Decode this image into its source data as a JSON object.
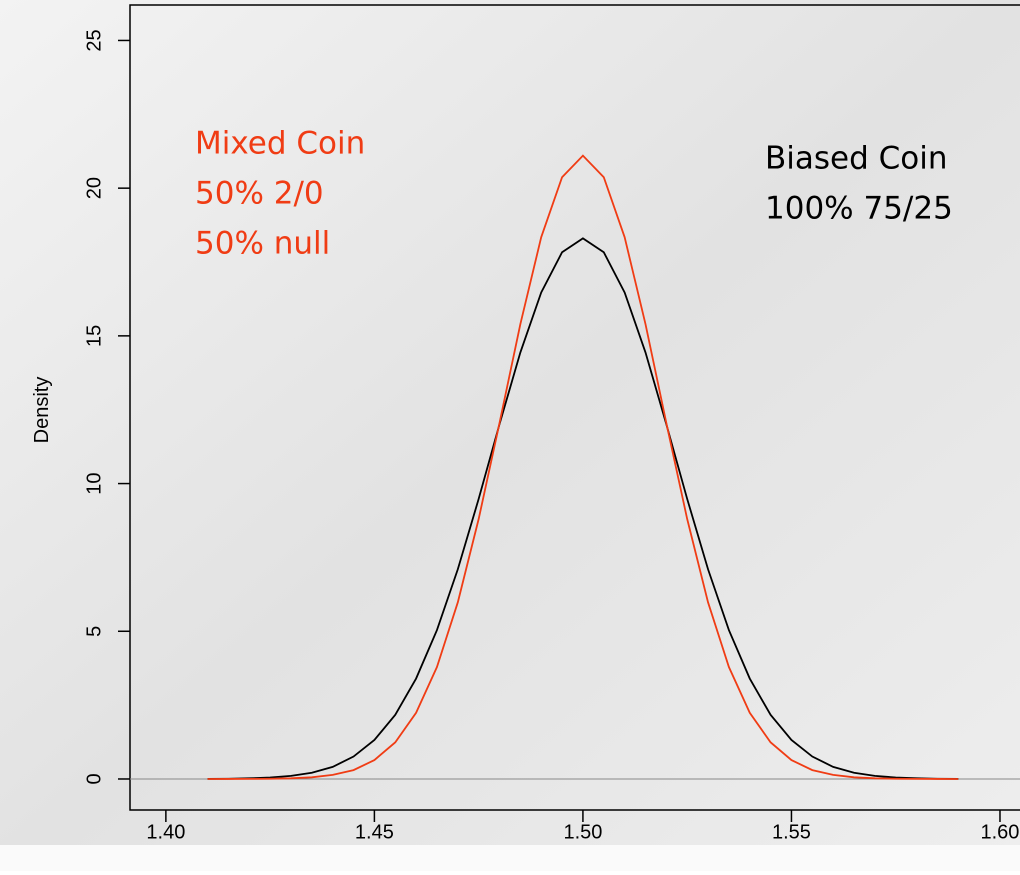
{
  "chart_data": {
    "type": "line",
    "ylabel": "Density",
    "x": [
      1.41,
      1.415,
      1.42,
      1.425,
      1.43,
      1.435,
      1.44,
      1.445,
      1.45,
      1.455,
      1.46,
      1.465,
      1.47,
      1.475,
      1.48,
      1.485,
      1.49,
      1.495,
      1.5,
      1.505,
      1.51,
      1.515,
      1.52,
      1.525,
      1.53,
      1.535,
      1.54,
      1.545,
      1.55,
      1.555,
      1.56,
      1.565,
      1.57,
      1.575,
      1.58,
      1.585,
      1.59
    ],
    "series": [
      {
        "color": "#000000",
        "values": [
          0.004,
          0.009,
          0.022,
          0.049,
          0.105,
          0.21,
          0.41,
          0.76,
          1.32,
          2.17,
          3.4,
          5.04,
          7.1,
          9.48,
          12.01,
          14.44,
          16.47,
          17.83,
          18.3,
          17.83,
          16.47,
          14.44,
          12.01,
          9.48,
          7.1,
          5.04,
          3.4,
          2.17,
          1.32,
          0.76,
          0.41,
          0.21,
          0.105,
          0.049,
          0.022,
          0.009,
          0.004
        ]
      },
      {
        "color": "#f03c14",
        "values": [
          0.0003,
          0.001,
          0.003,
          0.008,
          0.022,
          0.057,
          0.14,
          0.3,
          0.64,
          1.24,
          2.24,
          3.79,
          5.98,
          8.8,
          12.05,
          15.4,
          18.34,
          20.37,
          21.1,
          20.37,
          18.34,
          15.4,
          12.05,
          8.8,
          5.98,
          3.79,
          2.24,
          1.24,
          0.64,
          0.3,
          0.14,
          0.057,
          0.022,
          0.008,
          0.003,
          0.001,
          0.0003
        ]
      }
    ],
    "xlim": [
      1.3914,
      1.6048
    ],
    "ylim": [
      -1.05,
      26.2
    ],
    "xticks": [
      {
        "value": 1.4,
        "label": "1.40"
      },
      1.45,
      {
        "value": 1.5,
        "label": "1.50"
      },
      1.55,
      {
        "value": 1.6,
        "label": "1.60"
      }
    ],
    "yticks": [
      0,
      5,
      10,
      15,
      20,
      25
    ],
    "annotations": [
      {
        "lines": [
          "Mixed Coin",
          "50% 2/0",
          "50% null"
        ],
        "color": "#f03c14"
      },
      {
        "lines": [
          "Biased Coin",
          "100% 75/25"
        ],
        "color": "#000000"
      }
    ]
  }
}
